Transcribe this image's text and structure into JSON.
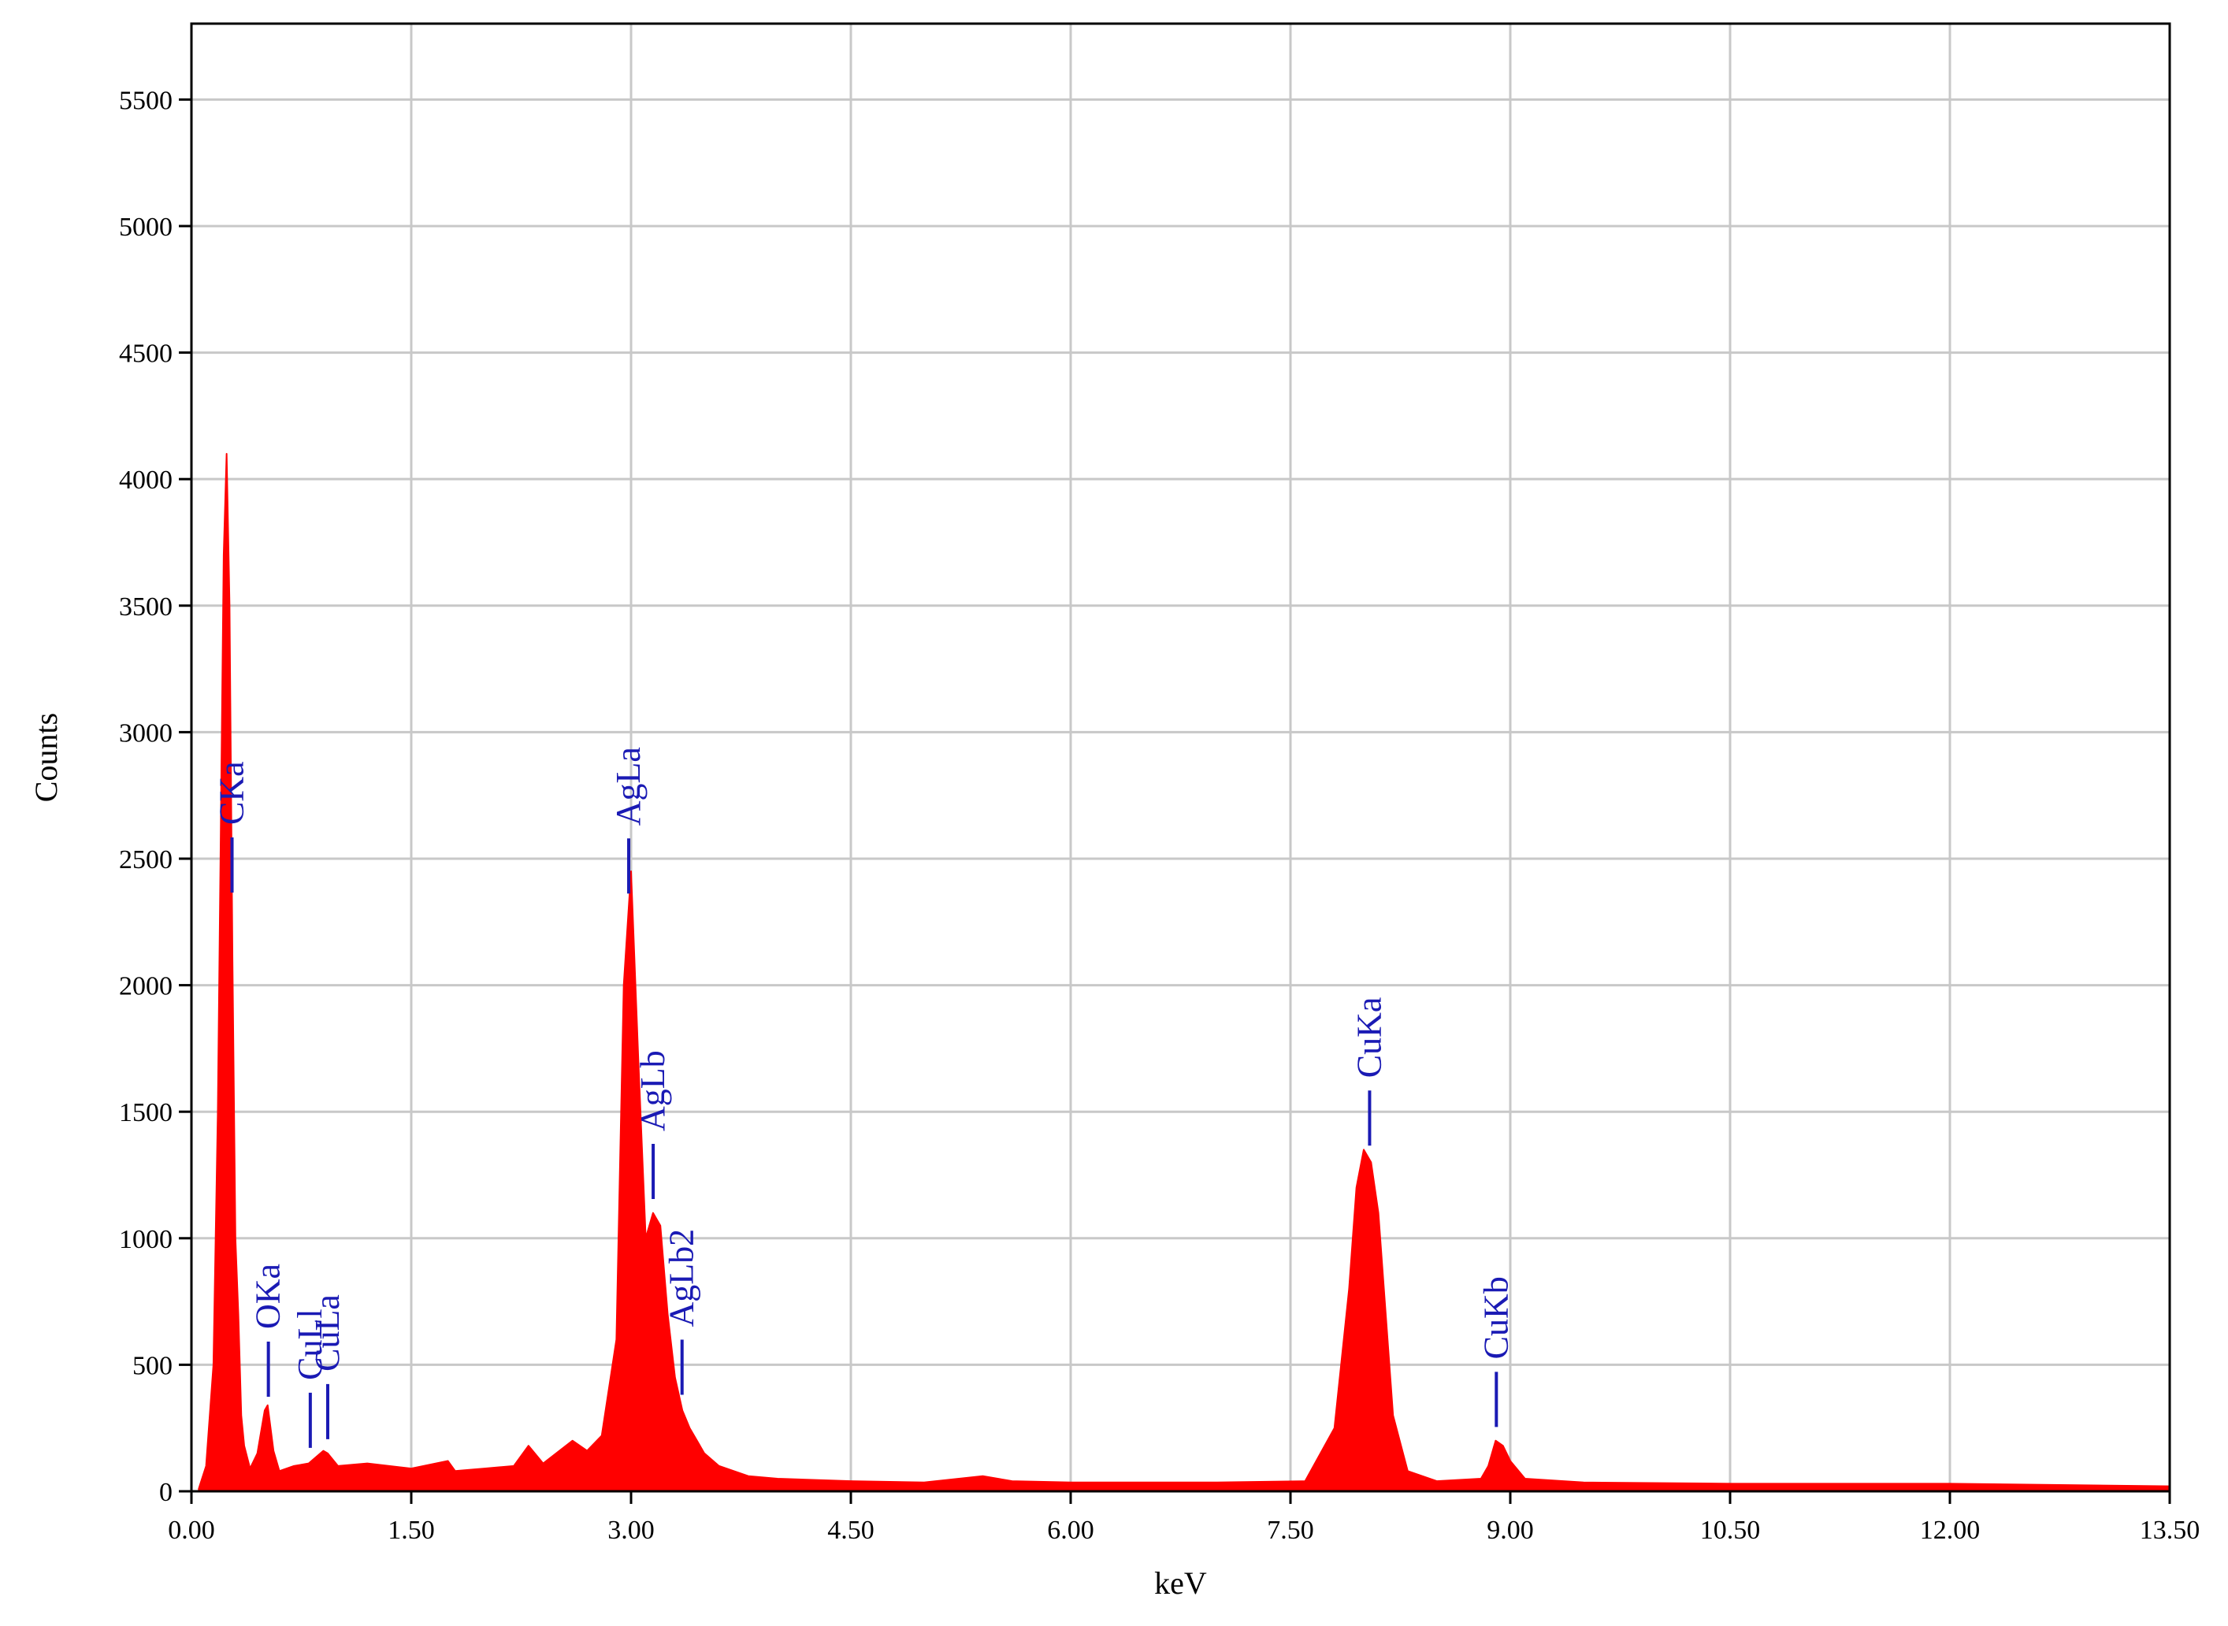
{
  "chart_data": {
    "type": "area",
    "title": "",
    "xlabel": "keV",
    "ylabel": "Counts",
    "xlim": [
      0,
      13.5
    ],
    "ylim": [
      0,
      5800
    ],
    "grid": true,
    "x_ticks": [
      "0.00",
      "1.50",
      "3.00",
      "4.50",
      "6.00",
      "7.50",
      "9.00",
      "10.50",
      "12.00",
      "13.50"
    ],
    "y_ticks": [
      "0",
      "500",
      "1000",
      "1500",
      "2000",
      "2500",
      "3000",
      "3500",
      "4000",
      "4500",
      "5000",
      "5500"
    ],
    "series": [
      {
        "color": "#ff0000",
        "x": [
          0.05,
          0.1,
          0.15,
          0.18,
          0.2,
          0.22,
          0.24,
          0.26,
          0.28,
          0.3,
          0.32,
          0.34,
          0.36,
          0.4,
          0.45,
          0.5,
          0.52,
          0.56,
          0.6,
          0.7,
          0.8,
          0.9,
          0.93,
          1.0,
          1.2,
          1.5,
          1.75,
          1.8,
          2.0,
          2.2,
          2.3,
          2.4,
          2.6,
          2.7,
          2.8,
          2.9,
          2.95,
          3.0,
          3.05,
          3.1,
          3.15,
          3.2,
          3.25,
          3.3,
          3.35,
          3.4,
          3.5,
          3.6,
          3.8,
          4.0,
          4.5,
          5.0,
          5.4,
          5.6,
          6.0,
          7.0,
          7.6,
          7.8,
          7.9,
          7.95,
          8.0,
          8.05,
          8.1,
          8.15,
          8.2,
          8.3,
          8.5,
          8.8,
          8.85,
          8.9,
          8.95,
          9.0,
          9.1,
          9.5,
          10.5,
          12.0,
          13.5
        ],
        "y": [
          10,
          100,
          500,
          1500,
          2600,
          3700,
          4100,
          3500,
          2100,
          1000,
          700,
          300,
          180,
          90,
          150,
          320,
          340,
          160,
          80,
          100,
          110,
          160,
          150,
          100,
          110,
          90,
          120,
          80,
          90,
          100,
          180,
          110,
          200,
          160,
          220,
          600,
          2000,
          2450,
          1700,
          1000,
          1100,
          1050,
          700,
          450,
          320,
          250,
          150,
          100,
          60,
          50,
          40,
          35,
          60,
          40,
          35,
          35,
          40,
          250,
          800,
          1200,
          1350,
          1300,
          1100,
          700,
          300,
          80,
          40,
          50,
          100,
          200,
          180,
          120,
          50,
          35,
          30,
          30,
          20
        ]
      }
    ],
    "annotations": [
      {
        "label": "CKa",
        "x": 0.277
      },
      {
        "label": "OKa",
        "x": 0.525
      },
      {
        "label": "CuLl",
        "x": 0.811
      },
      {
        "label": "CuLa",
        "x": 0.93
      },
      {
        "label": "AgLa",
        "x": 2.984
      },
      {
        "label": "AgLb",
        "x": 3.151
      },
      {
        "label": "AgLb2",
        "x": 3.348
      },
      {
        "label": "CuKa",
        "x": 8.04
      },
      {
        "label": "CuKb",
        "x": 8.905
      }
    ]
  }
}
